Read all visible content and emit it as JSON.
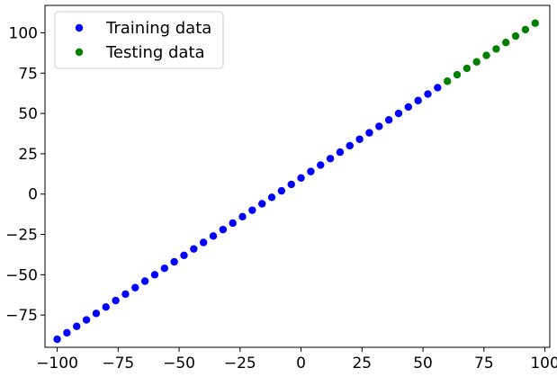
{
  "chart_data": {
    "type": "scatter",
    "xlim": [
      -105,
      102
    ],
    "ylim": [
      -95,
      117
    ],
    "x_ticks": [
      -100,
      -75,
      -50,
      -25,
      0,
      25,
      50,
      75,
      100
    ],
    "x_tick_labels": [
      "−100",
      "−75",
      "−50",
      "−25",
      "0",
      "25",
      "50",
      "75",
      "100"
    ],
    "y_ticks": [
      -75,
      -50,
      -25,
      0,
      25,
      50,
      75,
      100
    ],
    "y_tick_labels": [
      "−75",
      "−50",
      "−25",
      "0",
      "25",
      "50",
      "75",
      "100"
    ],
    "grid": false,
    "legend_position": "top-left",
    "series": [
      {
        "name": "Training data",
        "color": "#0000ff",
        "x": [
          -100,
          -96,
          -92,
          -88,
          -84,
          -80,
          -76,
          -72,
          -68,
          -64,
          -60,
          -56,
          -52,
          -48,
          -44,
          -40,
          -36,
          -32,
          -28,
          -24,
          -20,
          -16,
          -12,
          -8,
          -4,
          0,
          4,
          8,
          12,
          16,
          20,
          24,
          28,
          32,
          36,
          40,
          44,
          48,
          52,
          56
        ],
        "y": [
          -90,
          -86,
          -82,
          -78,
          -74,
          -70,
          -66,
          -62,
          -58,
          -54,
          -50,
          -46,
          -42,
          -38,
          -34,
          -30,
          -26,
          -22,
          -18,
          -14,
          -10,
          -6,
          -2,
          2,
          6,
          10,
          14,
          18,
          22,
          26,
          30,
          34,
          38,
          42,
          46,
          50,
          54,
          58,
          62,
          66
        ]
      },
      {
        "name": "Testing data",
        "color": "#008000",
        "x": [
          60,
          64,
          68,
          72,
          76,
          80,
          84,
          88,
          92,
          96
        ],
        "y": [
          70,
          74,
          78,
          82,
          86,
          90,
          94,
          98,
          102,
          106
        ]
      }
    ]
  }
}
